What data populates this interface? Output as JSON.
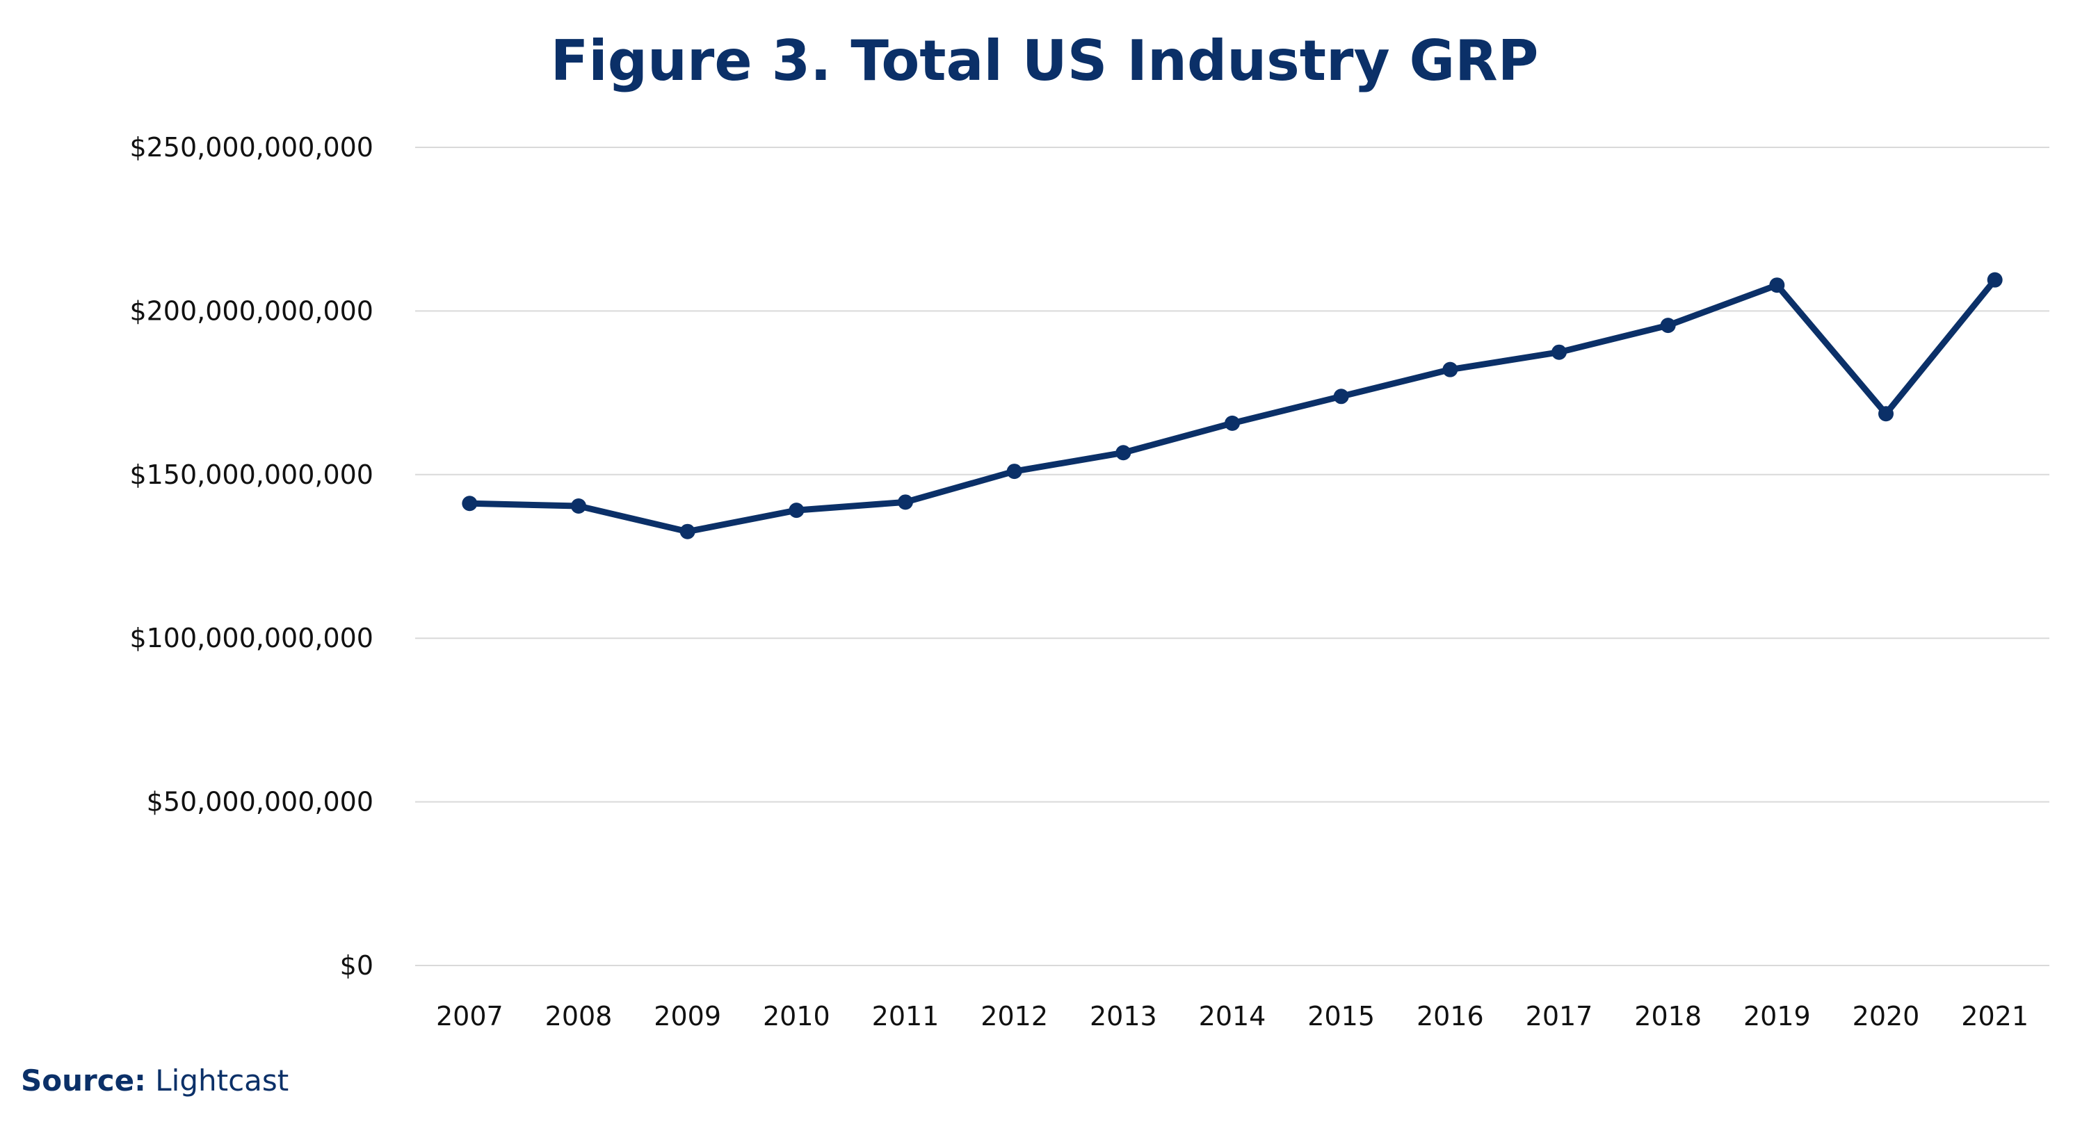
{
  "chart_data": {
    "type": "line",
    "title": "Figure 3. Total US Industry GRP",
    "xlabel": "",
    "ylabel": "",
    "categories": [
      "2007",
      "2008",
      "2009",
      "2010",
      "2011",
      "2012",
      "2013",
      "2014",
      "2015",
      "2016",
      "2017",
      "2018",
      "2019",
      "2020",
      "2021"
    ],
    "values": [
      141200000000,
      140400000000,
      132600000000,
      139100000000,
      141600000000,
      151000000000,
      156700000000,
      165700000000,
      173900000000,
      182100000000,
      187400000000,
      195600000000,
      207900000000,
      168600000000,
      209500000000
    ],
    "ylim": [
      0,
      250000000000
    ],
    "yticks": [
      0,
      50000000000,
      100000000000,
      150000000000,
      200000000000,
      250000000000
    ],
    "ytick_labels": [
      "$0",
      "$50,000,000,000",
      "$100,000,000,000",
      "$150,000,000,000",
      "$200,000,000,000",
      "$250,000,000,000"
    ],
    "grid": true,
    "legend": "none",
    "colors": {
      "line": "#0b3068",
      "title": "#0b3068",
      "grid": "#d9d9d9"
    }
  },
  "source": {
    "label": "Source:",
    "text": "Lightcast"
  }
}
